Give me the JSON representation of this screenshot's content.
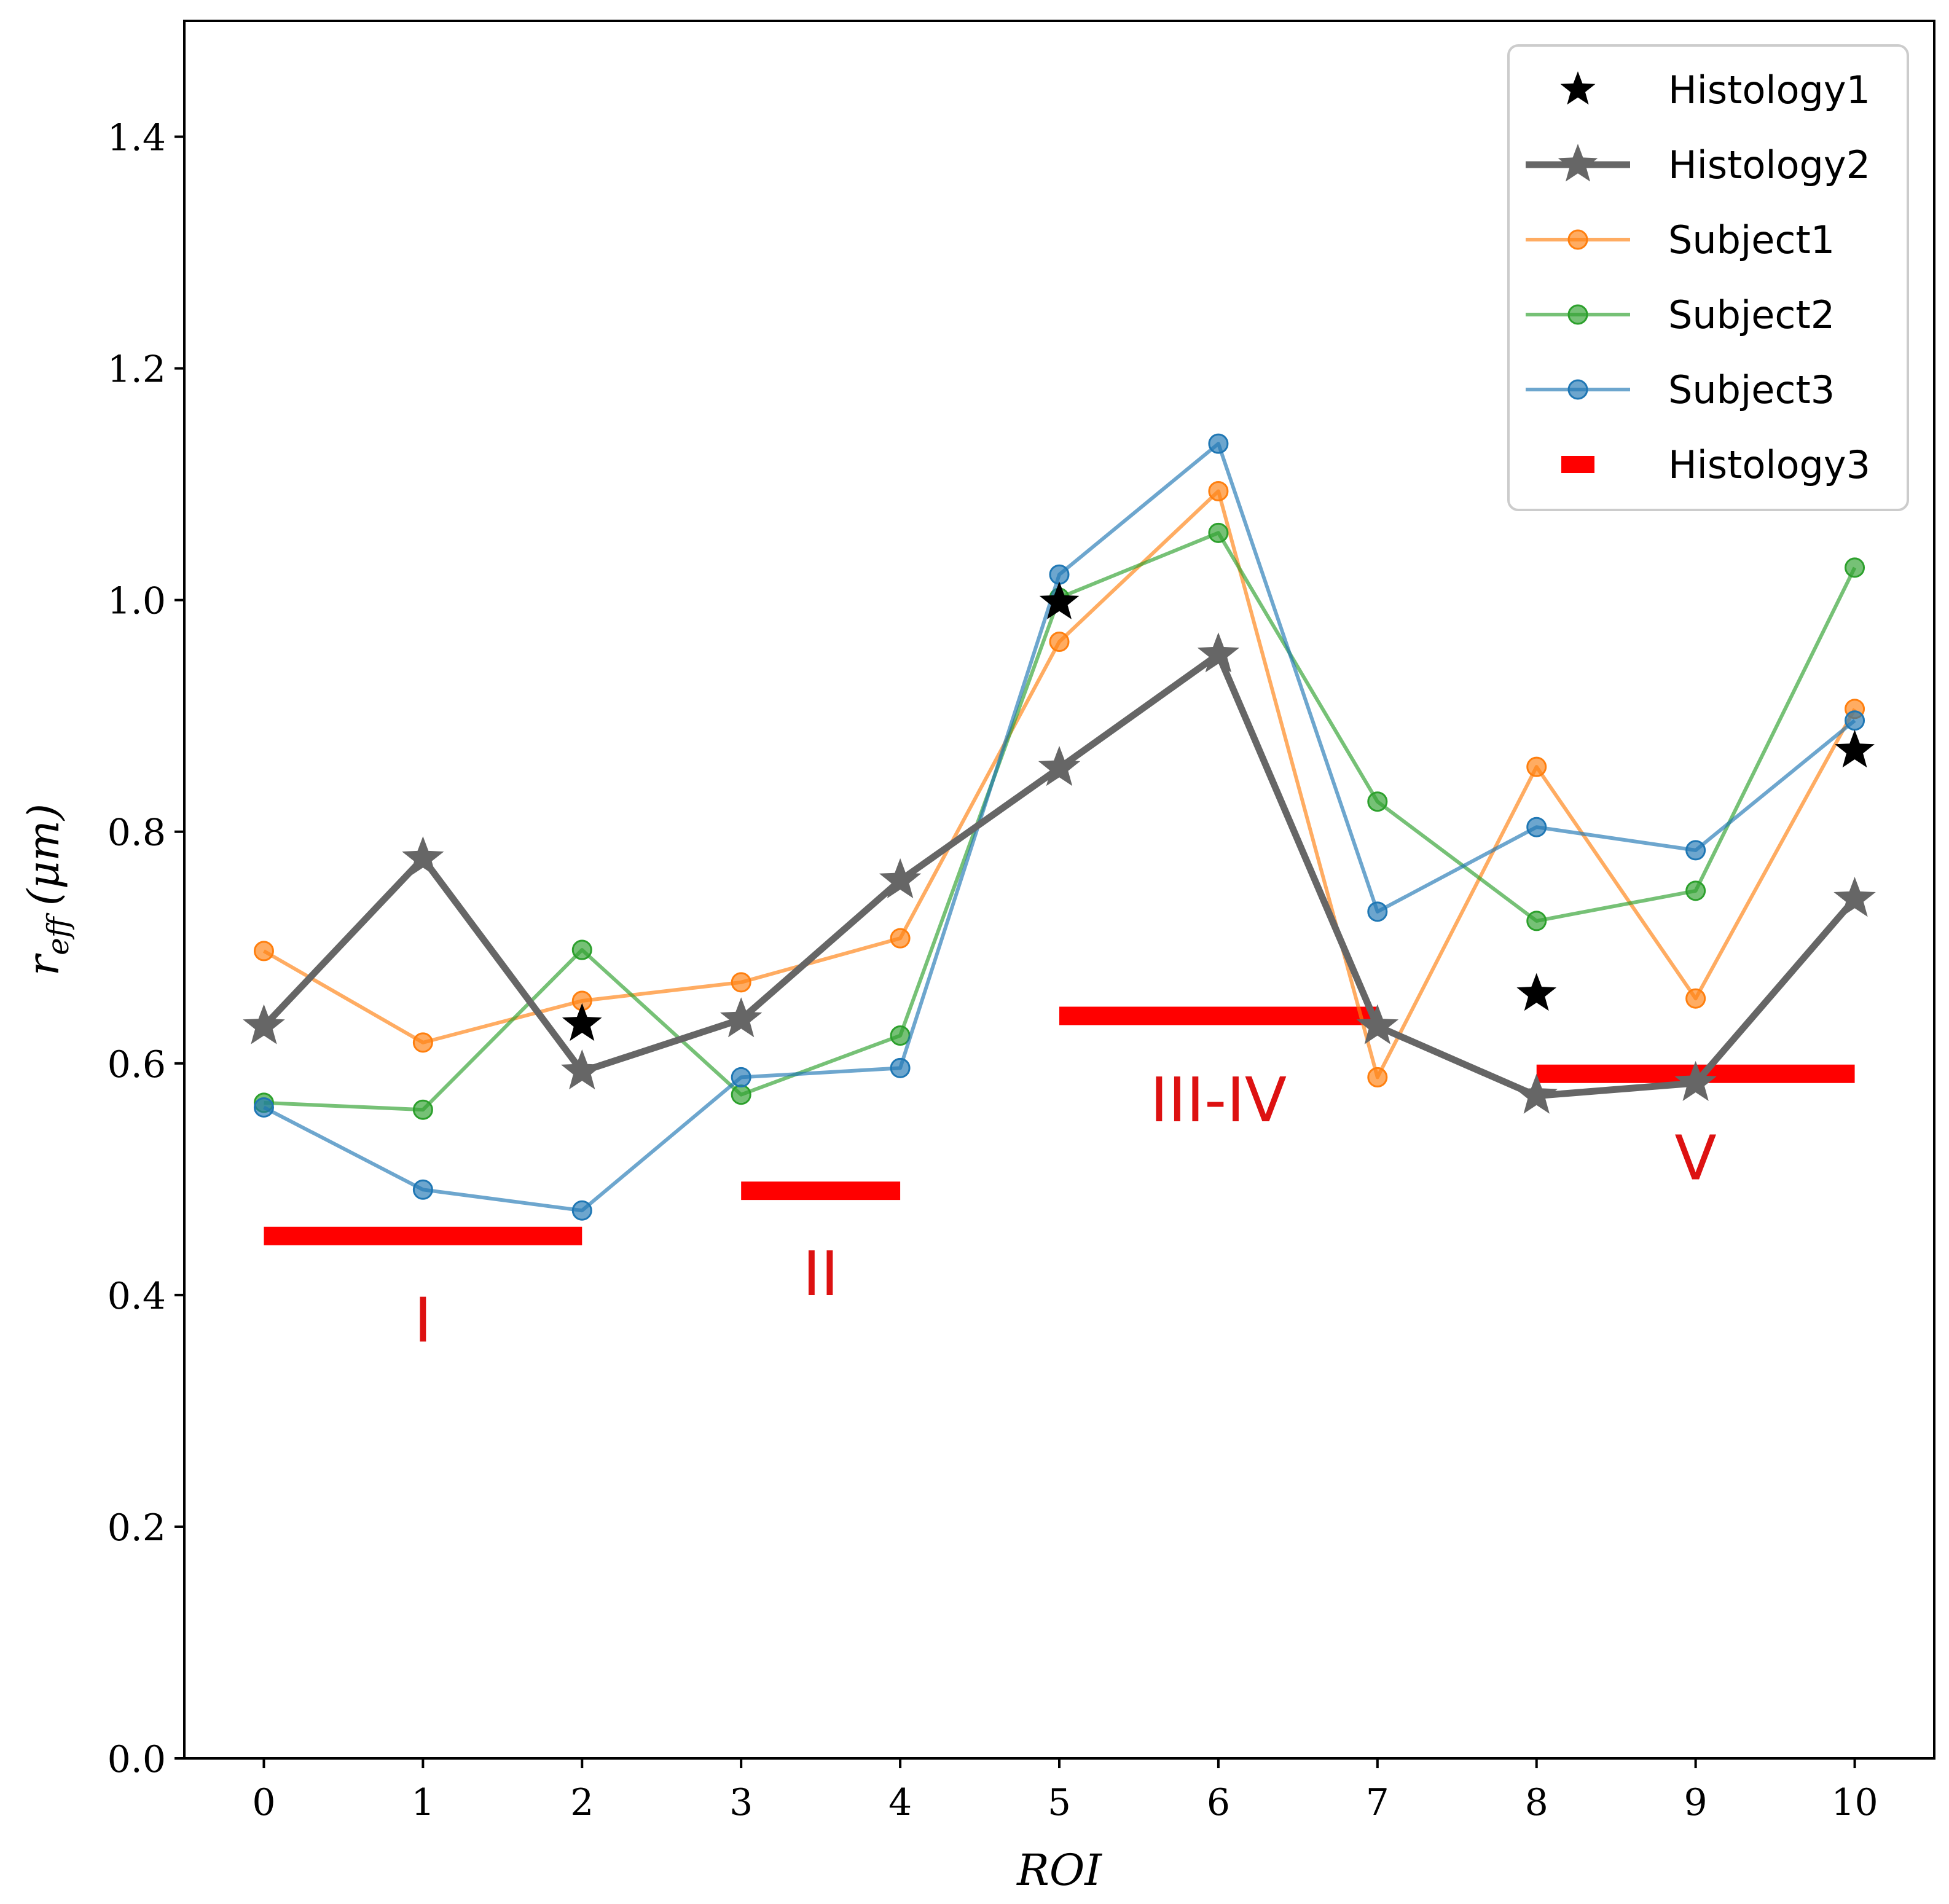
{
  "chart_data": {
    "type": "line",
    "title": "",
    "xlabel": "ROI",
    "ylabel": "r_eff (μm)",
    "ylabel_main": "r",
    "ylabel_sub": "eff",
    "ylabel_unit": "(μm)",
    "xlim": [
      -0.5,
      10.5
    ],
    "ylim": [
      0.0,
      1.5
    ],
    "xticks": [
      0,
      1,
      2,
      3,
      4,
      5,
      6,
      7,
      8,
      9,
      10
    ],
    "xtick_labels": [
      "0",
      "1",
      "2",
      "3",
      "4",
      "5",
      "6",
      "7",
      "8",
      "9",
      "10"
    ],
    "yticks": [
      0.0,
      0.2,
      0.4,
      0.6,
      0.8,
      1.0,
      1.2,
      1.4
    ],
    "ytick_labels": [
      "0.0",
      "0.2",
      "0.4",
      "0.6",
      "0.8",
      "1.0",
      "1.2",
      "1.4"
    ],
    "grid": false,
    "legend_position": "top-right",
    "series": [
      {
        "name": "Subject1",
        "style": "line-circle",
        "color": "#ff7f0e",
        "x": [
          0,
          1,
          2,
          3,
          4,
          5,
          6,
          7,
          8,
          9,
          10
        ],
        "values": [
          0.697,
          0.618,
          0.654,
          0.67,
          0.708,
          0.964,
          1.094,
          0.588,
          0.856,
          0.656,
          0.906
        ]
      },
      {
        "name": "Subject2",
        "style": "line-circle",
        "color": "#2ca02c",
        "x": [
          0,
          1,
          2,
          3,
          4,
          5,
          6,
          7,
          8,
          9,
          10
        ],
        "values": [
          0.566,
          0.56,
          0.698,
          0.573,
          0.624,
          1.002,
          1.058,
          0.826,
          0.723,
          0.749,
          1.028
        ]
      },
      {
        "name": "Subject3",
        "style": "line-circle",
        "color": "#1f77b4",
        "x": [
          0,
          1,
          2,
          3,
          4,
          5,
          6,
          7,
          8,
          9,
          10
        ],
        "values": [
          0.562,
          0.491,
          0.473,
          0.588,
          0.596,
          1.022,
          1.135,
          0.731,
          0.804,
          0.784,
          0.896
        ]
      },
      {
        "name": "Histology2",
        "style": "line-star",
        "color": "#666666",
        "x": [
          0,
          1,
          2,
          3,
          4,
          5,
          6,
          7,
          8,
          9,
          10
        ],
        "values": [
          0.632,
          0.777,
          0.593,
          0.638,
          0.758,
          0.855,
          0.953,
          0.632,
          0.572,
          0.583,
          0.742
        ]
      },
      {
        "name": "Histology1",
        "style": "star",
        "color": "#000000",
        "x": [
          2,
          5,
          8,
          10
        ],
        "values": [
          0.634,
          0.998,
          0.66,
          0.87
        ]
      }
    ],
    "histology3": {
      "name": "Histology3",
      "color": "#ff0000",
      "segments": [
        {
          "x0": 0,
          "x1": 2,
          "y": 0.451,
          "label": "I",
          "label_y": 0.36
        },
        {
          "x0": 3,
          "x1": 4,
          "y": 0.49,
          "label": "II",
          "label_y": 0.4
        },
        {
          "x0": 5,
          "x1": 7,
          "y": 0.641,
          "label": "III-IV",
          "label_y": 0.55
        },
        {
          "x0": 8,
          "x1": 10,
          "y": 0.591,
          "label": "V",
          "label_y": 0.5
        }
      ]
    },
    "legend": [
      "Histology1",
      "Histology2",
      "Subject1",
      "Subject2",
      "Subject3",
      "Histology3"
    ]
  }
}
